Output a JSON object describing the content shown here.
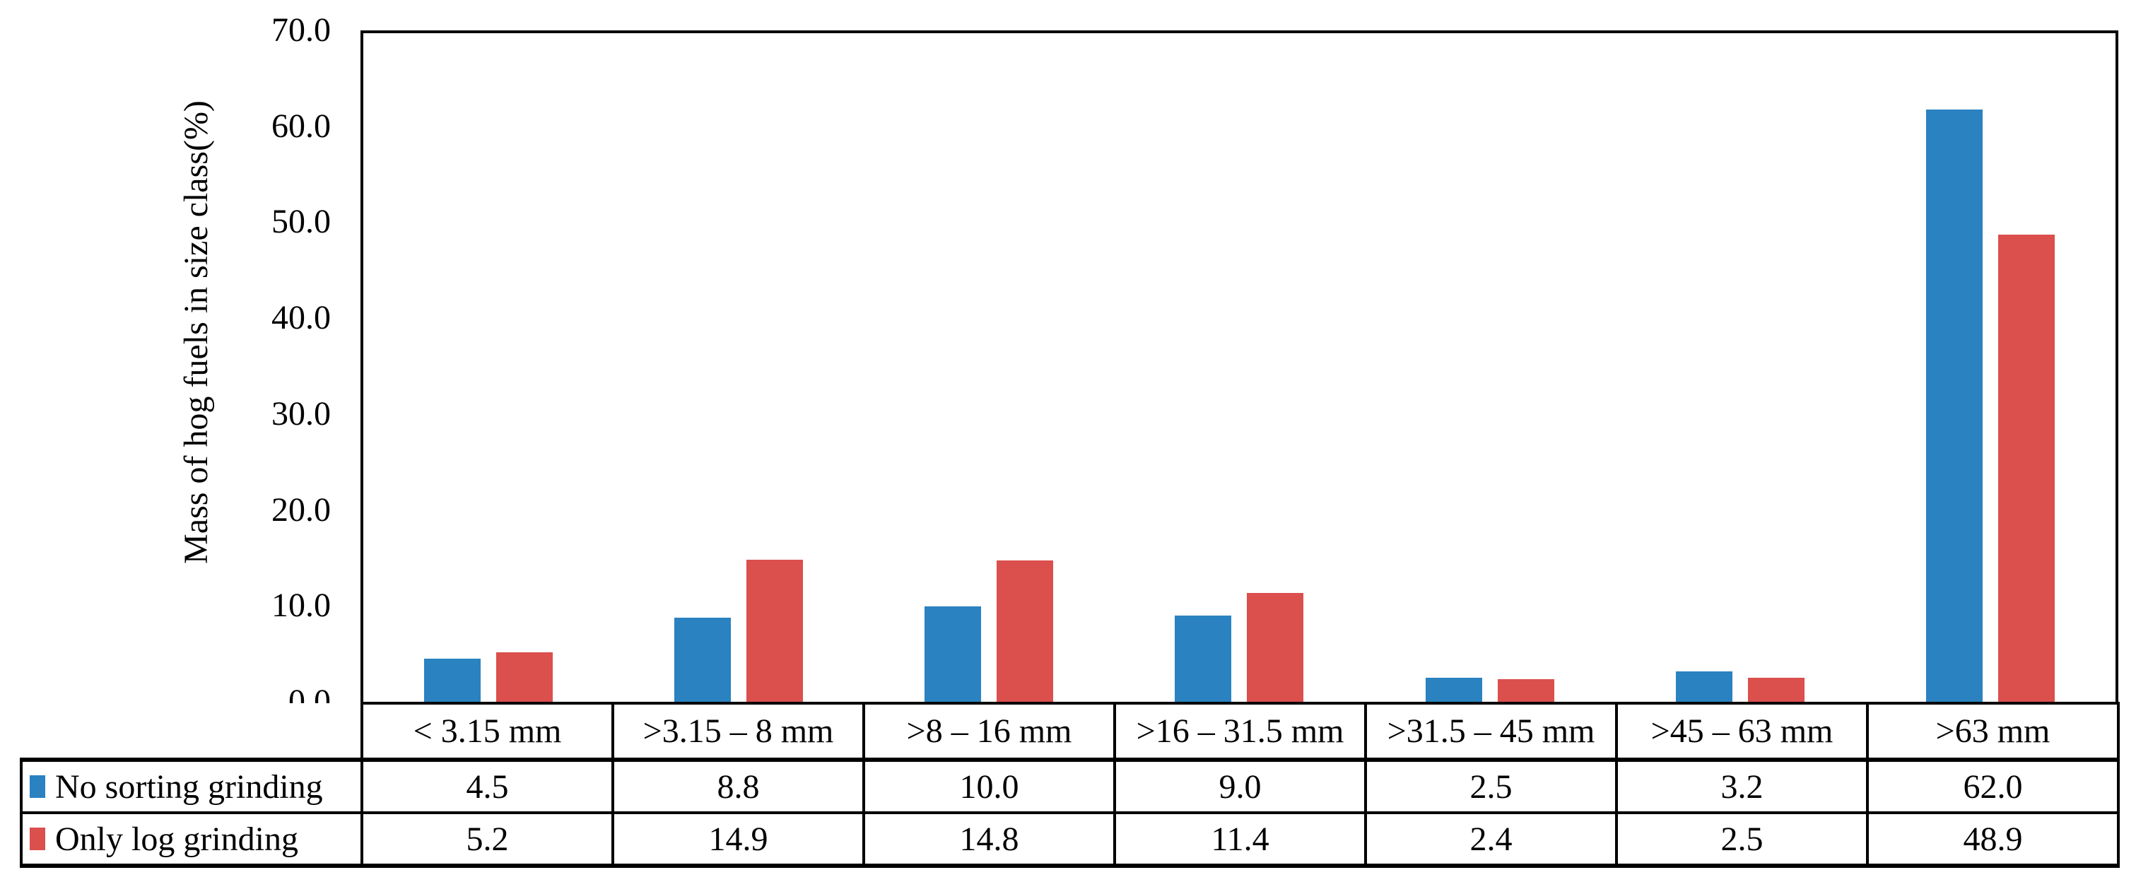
{
  "chart_data": {
    "type": "bar",
    "title": "",
    "ylabel": "Mass of hog fuels in size class(%)",
    "xlabel": "",
    "ylim": [
      0,
      70
    ],
    "ytick_step": 10,
    "ytick_labels": [
      "70.0",
      "60.0",
      "50.0",
      "40.0",
      "30.0",
      "20.0",
      "10.0",
      "0.0"
    ],
    "grid": false,
    "legend_position": "data-table-left",
    "categories": [
      "< 3.15 mm",
      ">3.15 – 8 mm",
      ">8 – 16 mm",
      ">16 – 31.5 mm",
      ">31.5 – 45 mm",
      ">45 – 63 mm",
      ">63 mm"
    ],
    "series": [
      {
        "name": "No sorting grinding",
        "color": "#2A82C0",
        "values": [
          4.5,
          8.8,
          10.0,
          9.0,
          2.5,
          3.2,
          62.0
        ]
      },
      {
        "name": "Only log grinding",
        "color": "#DB4F4D",
        "values": [
          5.2,
          14.9,
          14.8,
          11.4,
          2.4,
          2.5,
          48.9
        ]
      }
    ]
  },
  "colors": {
    "background": "#FFFFFF",
    "axis": "#000000",
    "series_blue": "#2A82C0",
    "series_red": "#DB4F4D"
  }
}
